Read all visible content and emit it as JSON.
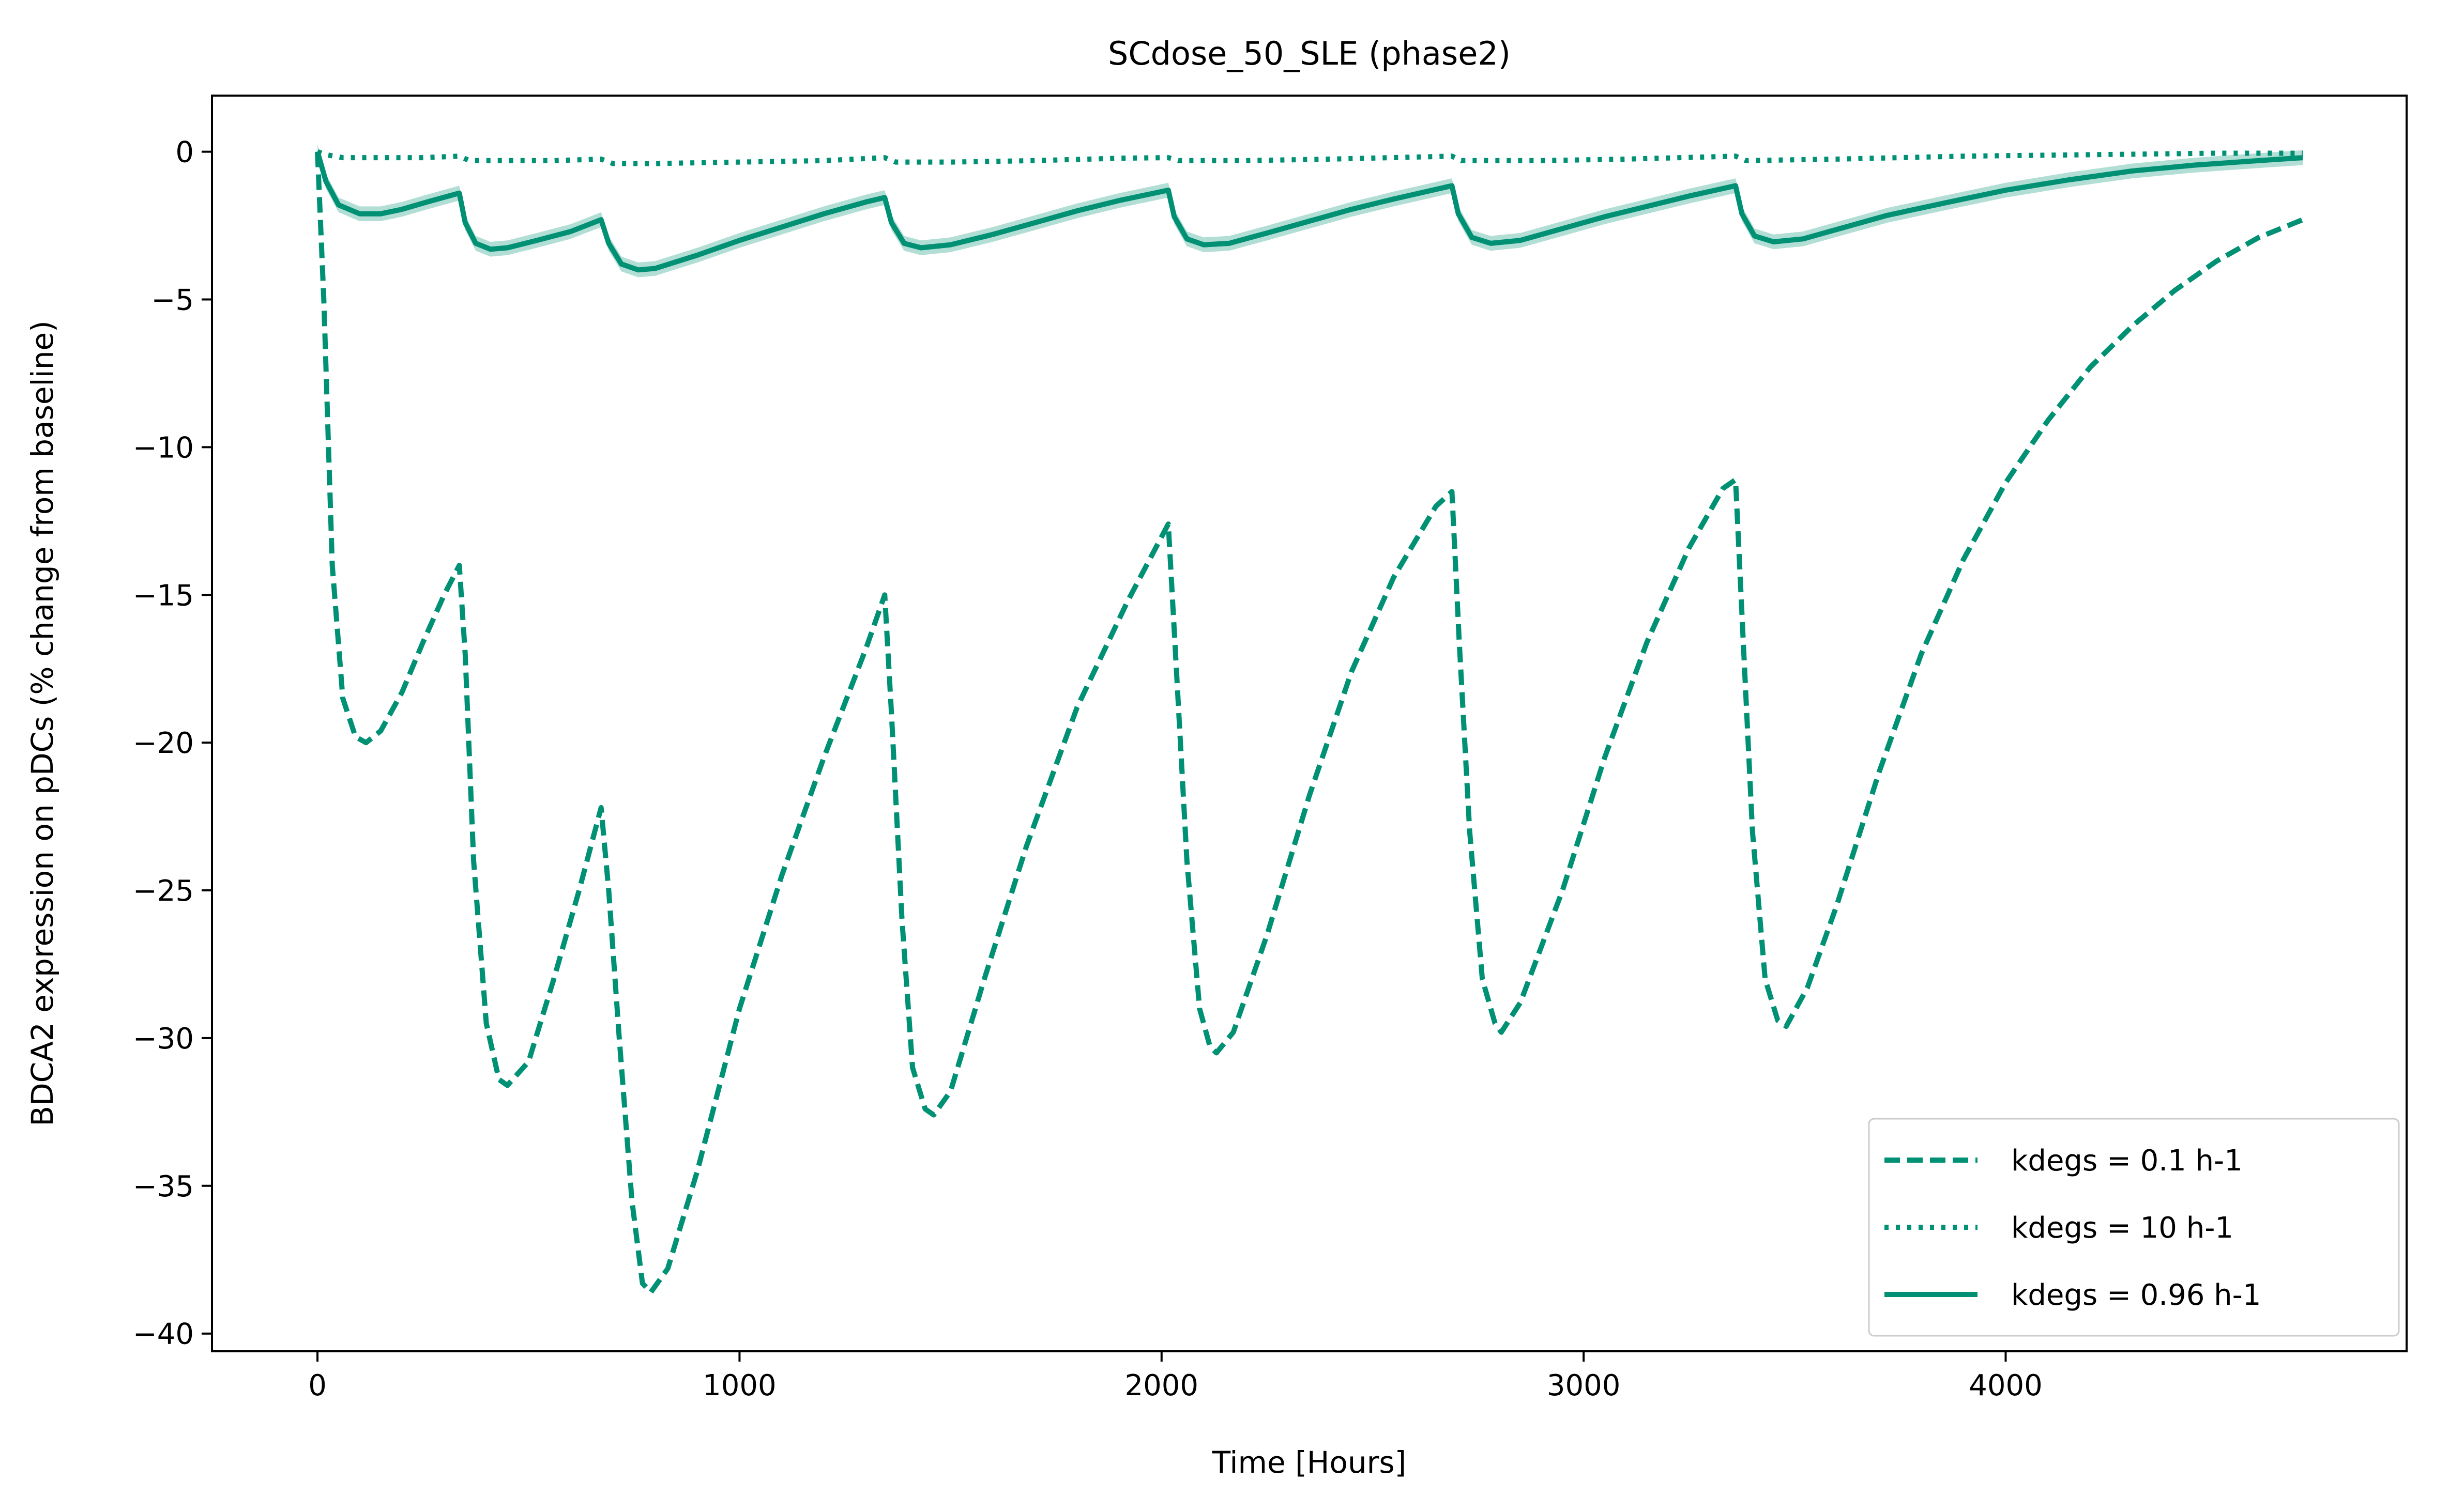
{
  "chart_data": {
    "type": "line",
    "title": "SCdose_50_SLE (phase2)",
    "xlabel": "Time [Hours]",
    "ylabel": "BDCA2 expression on pDCs (% change from baseline)",
    "xlim": [
      -250,
      4950
    ],
    "ylim": [
      -40.6,
      1.9
    ],
    "xticks": [
      0,
      1000,
      2000,
      3000,
      4000
    ],
    "xtick_labels": [
      "0",
      "1000",
      "2000",
      "3000",
      "4000"
    ],
    "yticks": [
      0,
      -5,
      -10,
      -15,
      -20,
      -25,
      -30,
      -35,
      -40
    ],
    "ytick_labels": [
      "0",
      "−5",
      "−10",
      "−15",
      "−20",
      "−25",
      "−30",
      "−35",
      "−40"
    ],
    "grid": false,
    "legend_position": "bottom-right",
    "series": [
      {
        "name": "kdegs = 0.1 h-1",
        "style": "dashed",
        "color": "#009175",
        "points": [
          [
            0,
            0
          ],
          [
            15,
            -5
          ],
          [
            35,
            -14
          ],
          [
            60,
            -18.5
          ],
          [
            90,
            -19.8
          ],
          [
            115,
            -20
          ],
          [
            150,
            -19.6
          ],
          [
            200,
            -18.3
          ],
          [
            250,
            -16.6
          ],
          [
            300,
            -15
          ],
          [
            336,
            -14
          ],
          [
            350,
            -17
          ],
          [
            370,
            -24
          ],
          [
            400,
            -29.5
          ],
          [
            430,
            -31.4
          ],
          [
            450,
            -31.6
          ],
          [
            500,
            -30.8
          ],
          [
            560,
            -28
          ],
          [
            620,
            -25
          ],
          [
            672,
            -22.2
          ],
          [
            690,
            -25
          ],
          [
            715,
            -30
          ],
          [
            745,
            -35.5
          ],
          [
            770,
            -38.3
          ],
          [
            790,
            -38.6
          ],
          [
            830,
            -37.8
          ],
          [
            900,
            -34.5
          ],
          [
            1000,
            -29
          ],
          [
            1100,
            -24.5
          ],
          [
            1200,
            -20.5
          ],
          [
            1300,
            -16.8
          ],
          [
            1344,
            -15
          ],
          [
            1360,
            -19
          ],
          [
            1385,
            -26
          ],
          [
            1410,
            -31
          ],
          [
            1440,
            -32.4
          ],
          [
            1460,
            -32.6
          ],
          [
            1500,
            -31.8
          ],
          [
            1580,
            -28
          ],
          [
            1680,
            -23.5
          ],
          [
            1800,
            -18.8
          ],
          [
            1920,
            -15.2
          ],
          [
            2016,
            -12.6
          ],
          [
            2035,
            -17.5
          ],
          [
            2060,
            -24
          ],
          [
            2090,
            -29
          ],
          [
            2115,
            -30.3
          ],
          [
            2130,
            -30.5
          ],
          [
            2170,
            -29.8
          ],
          [
            2250,
            -26.5
          ],
          [
            2350,
            -21.8
          ],
          [
            2450,
            -17.6
          ],
          [
            2550,
            -14.4
          ],
          [
            2650,
            -12
          ],
          [
            2688,
            -11.5
          ],
          [
            2705,
            -16.5
          ],
          [
            2730,
            -23
          ],
          [
            2760,
            -28
          ],
          [
            2790,
            -29.5
          ],
          [
            2805,
            -29.8
          ],
          [
            2850,
            -28.8
          ],
          [
            2950,
            -25
          ],
          [
            3050,
            -20.5
          ],
          [
            3150,
            -16.6
          ],
          [
            3250,
            -13.4
          ],
          [
            3330,
            -11.4
          ],
          [
            3360,
            -11.1
          ],
          [
            3378,
            -16.5
          ],
          [
            3400,
            -23
          ],
          [
            3430,
            -28
          ],
          [
            3460,
            -29.4
          ],
          [
            3480,
            -29.6
          ],
          [
            3530,
            -28.3
          ],
          [
            3600,
            -25.5
          ],
          [
            3700,
            -21
          ],
          [
            3800,
            -17
          ],
          [
            3900,
            -13.8
          ],
          [
            4000,
            -11.2
          ],
          [
            4100,
            -9.1
          ],
          [
            4200,
            -7.3
          ],
          [
            4300,
            -5.9
          ],
          [
            4400,
            -4.7
          ],
          [
            4500,
            -3.7
          ],
          [
            4600,
            -2.9
          ],
          [
            4704,
            -2.3
          ]
        ]
      },
      {
        "name": "kdegs = 10 h-1",
        "style": "dotted",
        "color": "#009175",
        "points": [
          [
            0,
            0
          ],
          [
            20,
            -0.1
          ],
          [
            60,
            -0.2
          ],
          [
            150,
            -0.2
          ],
          [
            250,
            -0.2
          ],
          [
            336,
            -0.15
          ],
          [
            360,
            -0.3
          ],
          [
            450,
            -0.3
          ],
          [
            560,
            -0.3
          ],
          [
            672,
            -0.25
          ],
          [
            700,
            -0.4
          ],
          [
            800,
            -0.4
          ],
          [
            1000,
            -0.35
          ],
          [
            1200,
            -0.3
          ],
          [
            1344,
            -0.2
          ],
          [
            1370,
            -0.35
          ],
          [
            1500,
            -0.35
          ],
          [
            1700,
            -0.3
          ],
          [
            1900,
            -0.22
          ],
          [
            2016,
            -0.2
          ],
          [
            2040,
            -0.3
          ],
          [
            2200,
            -0.3
          ],
          [
            2400,
            -0.25
          ],
          [
            2688,
            -0.15
          ],
          [
            2710,
            -0.3
          ],
          [
            2900,
            -0.3
          ],
          [
            3100,
            -0.25
          ],
          [
            3360,
            -0.15
          ],
          [
            3385,
            -0.3
          ],
          [
            3600,
            -0.25
          ],
          [
            3900,
            -0.15
          ],
          [
            4200,
            -0.1
          ],
          [
            4500,
            -0.05
          ],
          [
            4704,
            -0.05
          ]
        ]
      },
      {
        "name": "kdegs = 0.96 h-1",
        "style": "solid",
        "color": "#009175",
        "band": 0.25,
        "points": [
          [
            0,
            0
          ],
          [
            20,
            -1
          ],
          [
            50,
            -1.8
          ],
          [
            100,
            -2.1
          ],
          [
            150,
            -2.1
          ],
          [
            200,
            -1.95
          ],
          [
            260,
            -1.7
          ],
          [
            336,
            -1.4
          ],
          [
            350,
            -2.4
          ],
          [
            375,
            -3.1
          ],
          [
            410,
            -3.3
          ],
          [
            450,
            -3.25
          ],
          [
            520,
            -3
          ],
          [
            600,
            -2.7
          ],
          [
            672,
            -2.3
          ],
          [
            690,
            -3.1
          ],
          [
            720,
            -3.8
          ],
          [
            760,
            -4.0
          ],
          [
            800,
            -3.95
          ],
          [
            900,
            -3.5
          ],
          [
            1000,
            -3.0
          ],
          [
            1100,
            -2.55
          ],
          [
            1200,
            -2.1
          ],
          [
            1300,
            -1.7
          ],
          [
            1344,
            -1.55
          ],
          [
            1360,
            -2.4
          ],
          [
            1390,
            -3.1
          ],
          [
            1430,
            -3.25
          ],
          [
            1500,
            -3.15
          ],
          [
            1600,
            -2.8
          ],
          [
            1700,
            -2.4
          ],
          [
            1800,
            -2.0
          ],
          [
            1900,
            -1.65
          ],
          [
            2016,
            -1.3
          ],
          [
            2030,
            -2.2
          ],
          [
            2060,
            -2.95
          ],
          [
            2100,
            -3.15
          ],
          [
            2160,
            -3.1
          ],
          [
            2250,
            -2.75
          ],
          [
            2350,
            -2.35
          ],
          [
            2450,
            -1.95
          ],
          [
            2550,
            -1.6
          ],
          [
            2688,
            -1.15
          ],
          [
            2703,
            -2.1
          ],
          [
            2735,
            -2.9
          ],
          [
            2780,
            -3.1
          ],
          [
            2850,
            -3.0
          ],
          [
            2950,
            -2.6
          ],
          [
            3050,
            -2.2
          ],
          [
            3150,
            -1.85
          ],
          [
            3250,
            -1.5
          ],
          [
            3360,
            -1.15
          ],
          [
            3375,
            -2.1
          ],
          [
            3405,
            -2.85
          ],
          [
            3450,
            -3.05
          ],
          [
            3520,
            -2.95
          ],
          [
            3620,
            -2.55
          ],
          [
            3720,
            -2.15
          ],
          [
            3850,
            -1.75
          ],
          [
            4000,
            -1.3
          ],
          [
            4150,
            -0.95
          ],
          [
            4300,
            -0.65
          ],
          [
            4450,
            -0.45
          ],
          [
            4600,
            -0.3
          ],
          [
            4704,
            -0.2
          ]
        ]
      }
    ]
  }
}
